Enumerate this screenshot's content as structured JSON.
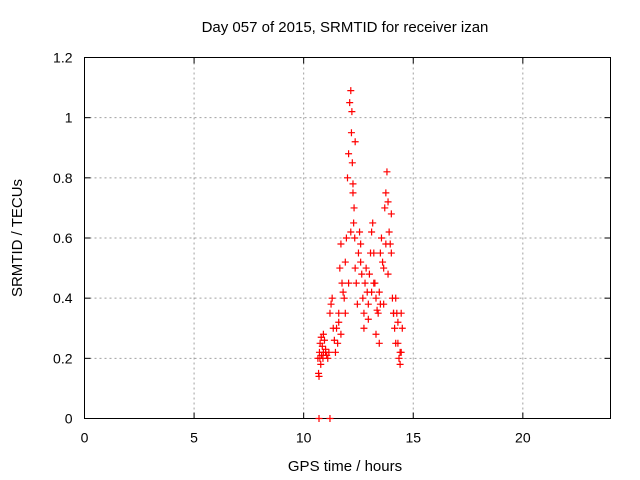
{
  "chart_data": {
    "type": "scatter",
    "title": "Day 057 of 2015, SRMTID for receiver izan",
    "xlabel": "GPS time / hours",
    "ylabel": "SRMTID / TECUs",
    "xlim": [
      0,
      24
    ],
    "ylim": [
      0,
      1.2
    ],
    "xticks": [
      0,
      5,
      10,
      15,
      20
    ],
    "yticks": [
      0,
      0.2,
      0.4,
      0.6,
      0.8,
      1,
      1.2
    ],
    "xtick_labels": [
      "0",
      "5",
      "10",
      "15",
      "20"
    ],
    "ytick_labels": [
      "0",
      "0.2",
      "0.4",
      "0.6",
      "0.8",
      "1",
      "1.2"
    ],
    "grid": true,
    "marker": "+",
    "color": "#ff0000",
    "series": [
      {
        "name": "SRMTID",
        "x": [
          10.65,
          10.7,
          10.72,
          10.75,
          10.78,
          10.8,
          10.82,
          10.85,
          10.88,
          10.9,
          10.95,
          11.0,
          11.05,
          11.1,
          11.15,
          11.2,
          11.25,
          11.3,
          11.35,
          11.4,
          11.45,
          11.5,
          11.55,
          11.6,
          11.65,
          11.7,
          11.75,
          11.8,
          11.85,
          11.9,
          11.95,
          12.0,
          12.05,
          12.1,
          12.15,
          12.18,
          12.2,
          12.22,
          12.25,
          12.28,
          12.3,
          12.33,
          12.35,
          12.4,
          12.45,
          12.5,
          12.55,
          12.6,
          12.65,
          12.7,
          12.75,
          12.8,
          12.85,
          12.9,
          12.95,
          13.0,
          13.05,
          13.1,
          13.15,
          13.2,
          13.25,
          13.3,
          13.35,
          13.4,
          13.45,
          13.5,
          13.55,
          13.6,
          13.65,
          13.7,
          13.75,
          13.8,
          13.85,
          13.9,
          13.95,
          14.0,
          14.05,
          14.1,
          14.15,
          14.2,
          14.25,
          14.3,
          14.35,
          14.4,
          14.45,
          14.5,
          10.68,
          10.74,
          10.9,
          11.0,
          11.6,
          11.7,
          11.9,
          12.05,
          12.6,
          12.75,
          12.95,
          13.1,
          13.3,
          13.45,
          13.65,
          13.85,
          14.1,
          14.3,
          14.45,
          12.15,
          12.25,
          12.35,
          13.2,
          13.5,
          13.75,
          14.0,
          14.2,
          14.4,
          10.7,
          11.2
        ],
        "y": [
          0.2,
          0.14,
          0.22,
          0.25,
          0.18,
          0.27,
          0.21,
          0.24,
          0.2,
          0.22,
          0.26,
          0.23,
          0.21,
          0.2,
          0.22,
          0.35,
          0.38,
          0.4,
          0.3,
          0.26,
          0.22,
          0.3,
          0.25,
          0.35,
          0.5,
          0.58,
          0.45,
          0.42,
          0.4,
          0.52,
          0.6,
          0.8,
          0.88,
          1.05,
          1.09,
          0.95,
          1.02,
          0.85,
          0.75,
          0.65,
          0.7,
          0.6,
          0.5,
          0.45,
          0.38,
          0.55,
          0.62,
          0.58,
          0.48,
          0.4,
          0.35,
          0.45,
          0.5,
          0.42,
          0.38,
          0.48,
          0.55,
          0.62,
          0.65,
          0.55,
          0.45,
          0.4,
          0.36,
          0.35,
          0.42,
          0.55,
          0.6,
          0.52,
          0.5,
          0.7,
          0.75,
          0.82,
          0.72,
          0.62,
          0.58,
          0.55,
          0.4,
          0.35,
          0.3,
          0.25,
          0.35,
          0.32,
          0.2,
          0.18,
          0.35,
          0.3,
          0.15,
          0.2,
          0.28,
          0.22,
          0.32,
          0.28,
          0.35,
          0.45,
          0.52,
          0.3,
          0.33,
          0.42,
          0.28,
          0.25,
          0.38,
          0.48,
          0.35,
          0.25,
          0.22,
          0.62,
          0.78,
          0.92,
          0.45,
          0.38,
          0.58,
          0.68,
          0.4,
          0.22,
          0.0,
          0.0
        ]
      }
    ]
  }
}
